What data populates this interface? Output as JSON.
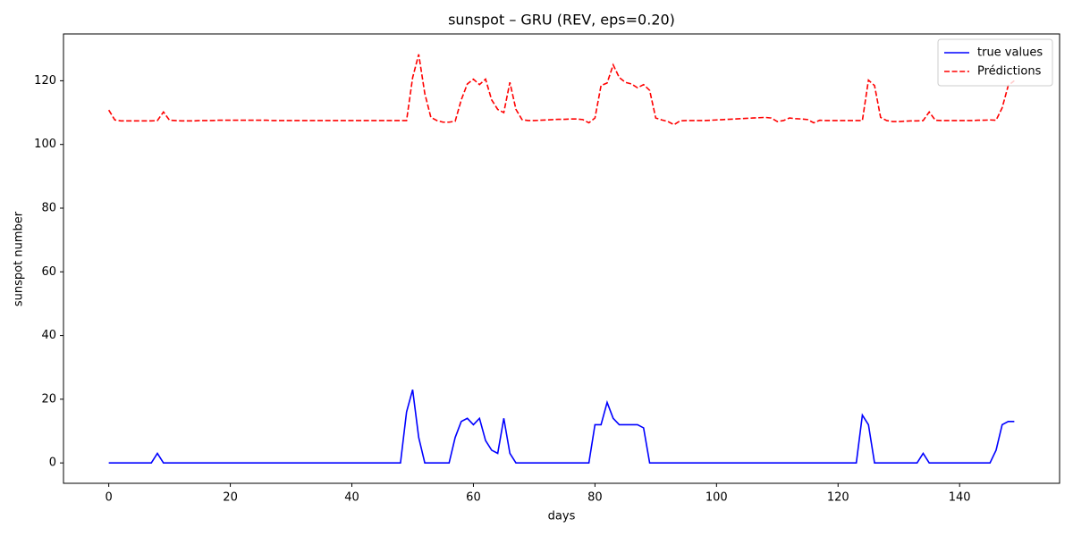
{
  "chart_data": {
    "type": "line",
    "title": "sunspot – GRU (REV, eps=0.20)",
    "xlabel": "days",
    "ylabel": "sunspot number",
    "x": [
      0,
      1,
      2,
      3,
      4,
      5,
      6,
      7,
      8,
      9,
      10,
      11,
      12,
      13,
      14,
      15,
      16,
      17,
      18,
      19,
      20,
      21,
      22,
      23,
      24,
      25,
      26,
      27,
      28,
      29,
      30,
      31,
      32,
      33,
      34,
      35,
      36,
      37,
      38,
      39,
      40,
      41,
      42,
      43,
      44,
      45,
      46,
      47,
      48,
      49,
      50,
      51,
      52,
      53,
      54,
      55,
      56,
      57,
      58,
      59,
      60,
      61,
      62,
      63,
      64,
      65,
      66,
      67,
      68,
      69,
      70,
      71,
      72,
      73,
      74,
      75,
      76,
      77,
      78,
      79,
      80,
      81,
      82,
      83,
      84,
      85,
      86,
      87,
      88,
      89,
      90,
      91,
      92,
      93,
      94,
      95,
      96,
      97,
      98,
      99,
      100,
      101,
      102,
      103,
      104,
      105,
      106,
      107,
      108,
      109,
      110,
      111,
      112,
      113,
      114,
      115,
      116,
      117,
      118,
      119,
      120,
      121,
      122,
      123,
      124,
      125,
      126,
      127,
      128,
      129,
      130,
      131,
      132,
      133,
      134,
      135,
      136,
      137,
      138,
      139,
      140,
      141,
      142,
      143,
      144,
      145,
      146,
      147,
      148,
      149
    ],
    "series": [
      {
        "name": "true values",
        "color": "#0000ff",
        "linestyle": "solid",
        "values": [
          0,
          0,
          0,
          0,
          0,
          0,
          0,
          0,
          3,
          0,
          0,
          0,
          0,
          0,
          0,
          0,
          0,
          0,
          0,
          0,
          0,
          0,
          0,
          0,
          0,
          0,
          0,
          0,
          0,
          0,
          0,
          0,
          0,
          0,
          0,
          0,
          0,
          0,
          0,
          0,
          0,
          0,
          0,
          0,
          0,
          0,
          0,
          0,
          0,
          16,
          23,
          8,
          0,
          0,
          0,
          0,
          0,
          8,
          13,
          14,
          12,
          14,
          7,
          4,
          3,
          14,
          3,
          0,
          0,
          0,
          0,
          0,
          0,
          0,
          0,
          0,
          0,
          0,
          0,
          0,
          12,
          12,
          19,
          14,
          12,
          12,
          12,
          12,
          11,
          0,
          0,
          0,
          0,
          0,
          0,
          0,
          0,
          0,
          0,
          0,
          0,
          0,
          0,
          0,
          0,
          0,
          0,
          0,
          0,
          0,
          0,
          0,
          0,
          0,
          0,
          0,
          0,
          0,
          0,
          0,
          0,
          0,
          0,
          0,
          15,
          12,
          0,
          0,
          0,
          0,
          0,
          0,
          0,
          0,
          3,
          0,
          0,
          0,
          0,
          0,
          0,
          0,
          0,
          0,
          0,
          0,
          4,
          12,
          13,
          13
        ]
      },
      {
        "name": "Prédictions",
        "color": "#ff0000",
        "linestyle": "dashed",
        "values": [
          110.8,
          107.7,
          107.4,
          107.4,
          107.4,
          107.4,
          107.4,
          107.4,
          107.5,
          110.2,
          107.6,
          107.5,
          107.4,
          107.4,
          107.4,
          107.5,
          107.5,
          107.5,
          107.6,
          107.6,
          107.6,
          107.6,
          107.6,
          107.6,
          107.6,
          107.6,
          107.6,
          107.5,
          107.5,
          107.5,
          107.5,
          107.5,
          107.5,
          107.5,
          107.5,
          107.5,
          107.5,
          107.5,
          107.5,
          107.5,
          107.5,
          107.5,
          107.5,
          107.5,
          107.5,
          107.5,
          107.5,
          107.5,
          107.5,
          107.5,
          121,
          128.3,
          116,
          108.5,
          107.5,
          107,
          107,
          107.3,
          114,
          119,
          120.5,
          118.8,
          120.5,
          114,
          111,
          110,
          119.5,
          111,
          107.8,
          107.5,
          107.5,
          107.6,
          107.7,
          107.8,
          107.9,
          107.9,
          108,
          108,
          107.8,
          106.8,
          108.3,
          118.5,
          119.3,
          125,
          121,
          119.5,
          119,
          117.8,
          118.8,
          117,
          108.3,
          107.7,
          107.2,
          106.2,
          107.4,
          107.5,
          107.5,
          107.5,
          107.5,
          107.6,
          107.7,
          107.8,
          107.9,
          108,
          108.1,
          108.2,
          108.3,
          108.4,
          108.5,
          108.3,
          107.2,
          107.5,
          108.3,
          108.1,
          108,
          107.8,
          106.8,
          107.6,
          107.5,
          107.5,
          107.5,
          107.5,
          107.5,
          107.5,
          107.5,
          120.2,
          118.5,
          108.5,
          107.5,
          107.2,
          107.2,
          107.3,
          107.4,
          107.4,
          107.5,
          110.2,
          107.6,
          107.5,
          107.5,
          107.5,
          107.5,
          107.5,
          107.5,
          107.6,
          107.6,
          107.7,
          107.6,
          111.5,
          118.5,
          120
        ]
      }
    ],
    "xlim": [
      -7.45,
      156.45
    ],
    "ylim": [
      -6.4,
      134.7
    ],
    "xticks": [
      0,
      20,
      40,
      60,
      80,
      100,
      120,
      140
    ],
    "yticks": [
      0,
      20,
      40,
      60,
      80,
      100,
      120
    ],
    "legend": "upper right",
    "grid": false
  }
}
